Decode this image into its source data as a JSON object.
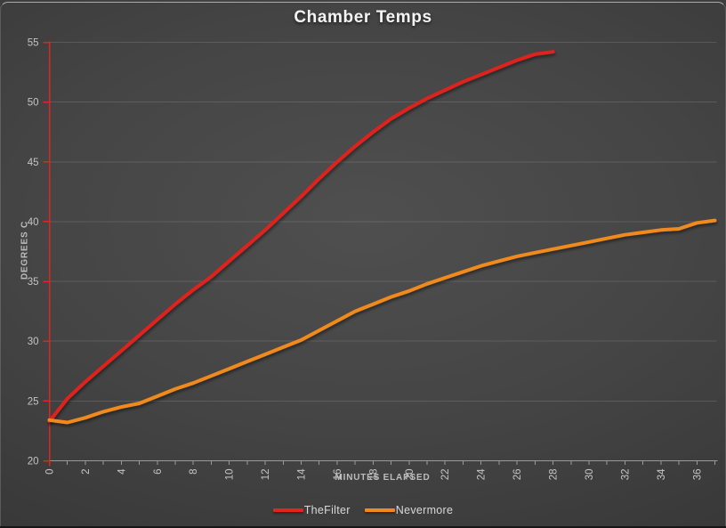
{
  "chart_data": {
    "type": "line",
    "title": "Chamber Temps",
    "xlabel": "MINUTES ELAPSED",
    "ylabel": "DEGREES C",
    "xlim": [
      0,
      37.1
    ],
    "ylim": [
      20,
      55
    ],
    "x_tick_minor_step": 1,
    "x_tick_label_step": 2,
    "y_tick_step": 5,
    "grid": "horizontal-on",
    "legend_position": "bottom-center",
    "x_step": 1,
    "series": [
      {
        "name": "TheFilter",
        "color": "#e0241f",
        "values": [
          23.3,
          25.2,
          26.6,
          27.9,
          29.2,
          30.5,
          31.8,
          33.1,
          34.3,
          35.4,
          36.7,
          38.0,
          39.3,
          40.7,
          42.1,
          43.6,
          45.0,
          46.3,
          47.5,
          48.6,
          49.5,
          50.3,
          51.0,
          51.7,
          52.3,
          52.9,
          53.5,
          54.0,
          54.2
        ]
      },
      {
        "name": "Nevermore",
        "color": "#f08a1c",
        "values": [
          23.4,
          23.2,
          23.6,
          24.1,
          24.5,
          24.8,
          25.4,
          26.0,
          26.5,
          27.1,
          27.7,
          28.3,
          28.9,
          29.5,
          30.1,
          30.9,
          31.7,
          32.5,
          33.1,
          33.7,
          34.2,
          34.8,
          35.3,
          35.8,
          36.3,
          36.7,
          37.1,
          37.4,
          37.7,
          38.0,
          38.3,
          38.6,
          38.9,
          39.1,
          39.3,
          39.4,
          39.9,
          40.1
        ]
      }
    ],
    "colors": {
      "background_center": "#4f4f4f",
      "background_edge": "#262626",
      "title_text": "#f4f4f4",
      "tick_label": "#c4c4c4",
      "axis_title": "#bdbdbd",
      "gridline": "rgba(255,255,255,0.13)",
      "x_axis_line": "#9a9a9a",
      "y_axis_line": "#e0241f",
      "legend_text": "#d8d8d8"
    }
  }
}
